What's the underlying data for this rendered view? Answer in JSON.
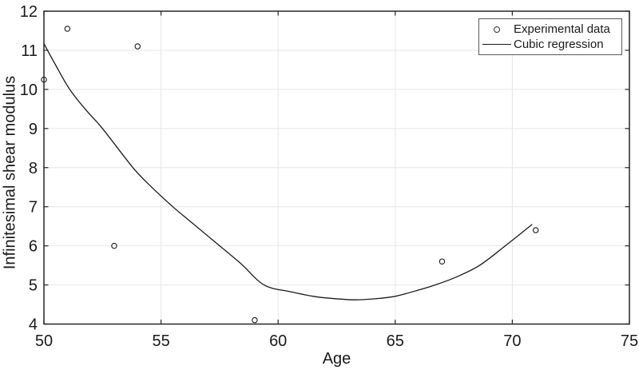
{
  "figure": {
    "background": "#ffffff",
    "axis_color": "#262626",
    "grid_color": "#e6e6e6",
    "text_color": "#1a1a1a",
    "data_color": "#1a1a1a"
  },
  "chart_data": {
    "type": "scatter",
    "title": "",
    "xlabel": "Age",
    "ylabel": "Infinitesimal shear modulus",
    "xlim": [
      50,
      75
    ],
    "ylim": [
      4,
      12
    ],
    "xticks": [
      50,
      55,
      60,
      65,
      70,
      75
    ],
    "yticks": [
      4,
      5,
      6,
      7,
      8,
      9,
      10,
      11,
      12
    ],
    "grid": true,
    "box": true,
    "legend_position": "top-right",
    "series": [
      {
        "name": "Experimental data",
        "type": "scatter",
        "marker": "open-circle",
        "points": [
          [
            50,
            10.25
          ],
          [
            51,
            11.55
          ],
          [
            53,
            6.0
          ],
          [
            54,
            11.1
          ],
          [
            59,
            4.1
          ],
          [
            67,
            5.6
          ],
          [
            71,
            6.4
          ]
        ]
      },
      {
        "name": "Cubic regression",
        "type": "line",
        "marker": "solid-line",
        "points": [
          [
            50,
            11.17
          ],
          [
            50.5,
            10.62
          ],
          [
            51.1,
            10.0
          ],
          [
            51.8,
            9.47
          ],
          [
            52.5,
            9.0
          ],
          [
            53.8,
            8.0
          ],
          [
            54.6,
            7.5
          ],
          [
            55.5,
            7.0
          ],
          [
            56.3,
            6.6
          ],
          [
            57.2,
            6.15
          ],
          [
            58.4,
            5.55
          ],
          [
            59.4,
            5.0
          ],
          [
            60.5,
            4.83
          ],
          [
            61.5,
            4.71
          ],
          [
            62.4,
            4.65
          ],
          [
            63.3,
            4.62
          ],
          [
            64.2,
            4.65
          ],
          [
            65.0,
            4.71
          ],
          [
            66.0,
            4.87
          ],
          [
            66.7,
            5.0
          ],
          [
            67.6,
            5.2
          ],
          [
            68.6,
            5.5
          ],
          [
            69.7,
            6.0
          ],
          [
            70.85,
            6.55
          ]
        ]
      }
    ]
  }
}
